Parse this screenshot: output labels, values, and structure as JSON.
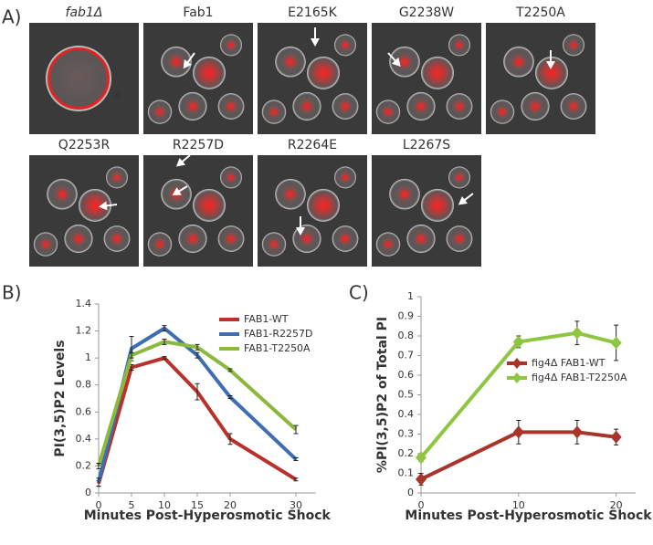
{
  "panel_labels": [
    "A)",
    "B)",
    "C)"
  ],
  "images": [
    {
      "label": "fab1Δ",
      "marker": "*"
    },
    {
      "label": "Fab1"
    },
    {
      "label": "E2165K"
    },
    {
      "label": "G2238W"
    },
    {
      "label": "T2250A"
    },
    {
      "label": "Q2253R"
    },
    {
      "label": "R2257D"
    },
    {
      "label": "R2264E"
    },
    {
      "label": "L2267S"
    }
  ],
  "chart_data": [
    {
      "type": "line",
      "x_label": "Minutes Post-Hyperosmotic Shock",
      "y_label": "PI(3,5)P2 Levels",
      "x": [
        0,
        5,
        10,
        15,
        20,
        30
      ],
      "xlim": [
        0,
        33
      ],
      "xticks": [
        0,
        5,
        10,
        15,
        20,
        30
      ],
      "ylim": [
        0,
        1.4
      ],
      "yticks": [
        0,
        0.2,
        0.4,
        0.6,
        0.8,
        1,
        1.2,
        1.4
      ],
      "legend": "upper right",
      "series": [
        {
          "name": "FAB1-WT",
          "color": "#b8312b",
          "values": [
            0.07,
            0.93,
            1.0,
            0.75,
            0.4,
            0.1
          ],
          "errors": [
            0.02,
            0.02,
            0.01,
            0.06,
            0.04,
            0.01
          ]
        },
        {
          "name": "FAB1-R2257D",
          "color": "#3d6eb4",
          "values": [
            0.08,
            1.07,
            1.22,
            1.02,
            0.71,
            0.25
          ],
          "errors": [
            0.03,
            0.09,
            0.02,
            0.02,
            0.01,
            0.01
          ]
        },
        {
          "name": "FAB1-T2250A",
          "color": "#8bb83d",
          "values": [
            0.2,
            1.02,
            1.12,
            1.08,
            0.91,
            0.47
          ],
          "errors": [
            0.02,
            0.02,
            0.02,
            0.02,
            0.01,
            0.03
          ]
        }
      ]
    },
    {
      "type": "line",
      "x_label": "Minutes Post-Hyperosmotic Shock",
      "y_label": "%PI(3,5)P2 of Total PI",
      "x": [
        0,
        10,
        16,
        20
      ],
      "xlim": [
        0,
        22
      ],
      "xticks": [
        0,
        10,
        20
      ],
      "ylim": [
        0,
        1
      ],
      "yticks": [
        0,
        0.1,
        0.2,
        0.3,
        0.4,
        0.5,
        0.6,
        0.7,
        0.8,
        0.9,
        1
      ],
      "legend": "center right",
      "marker": "diamond",
      "series": [
        {
          "name": "fig4Δ FAB1-WT",
          "color": "#a8342c",
          "values": [
            0.07,
            0.31,
            0.31,
            0.285
          ],
          "errors": [
            0.03,
            0.06,
            0.06,
            0.04
          ]
        },
        {
          "name": "fig4Δ FAB1-T2250A",
          "color": "#8ec641",
          "values": [
            0.18,
            0.77,
            0.815,
            0.765
          ],
          "errors": [
            0.02,
            0.03,
            0.06,
            0.09
          ]
        }
      ]
    }
  ]
}
